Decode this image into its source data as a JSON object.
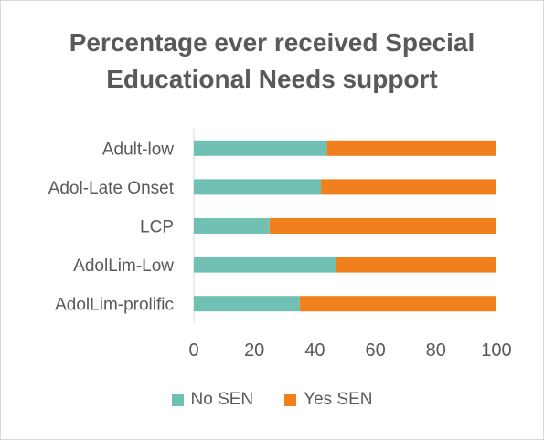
{
  "title_lines": [
    "Percentage ever received Special",
    "Educational Needs support"
  ],
  "chart_data": {
    "type": "bar",
    "orientation": "horizontal",
    "stacked": true,
    "title": "Percentage ever received Special Educational Needs support",
    "categories": [
      "Adult-low",
      "Adol-Late Onset",
      "LCP",
      "AdolLim-Low",
      "AdolLim-prolific"
    ],
    "series": [
      {
        "name": "No SEN",
        "color": "#70c1b3",
        "values": [
          44,
          42,
          25,
          47,
          35
        ]
      },
      {
        "name": "Yes SEN",
        "color": "#f07f1d",
        "values": [
          56,
          58,
          75,
          53,
          65
        ]
      }
    ],
    "xlim": [
      0,
      100
    ],
    "xticks": [
      "0",
      "20",
      "40",
      "60",
      "80",
      "100"
    ],
    "grid": true,
    "legend_position": "bottom"
  }
}
